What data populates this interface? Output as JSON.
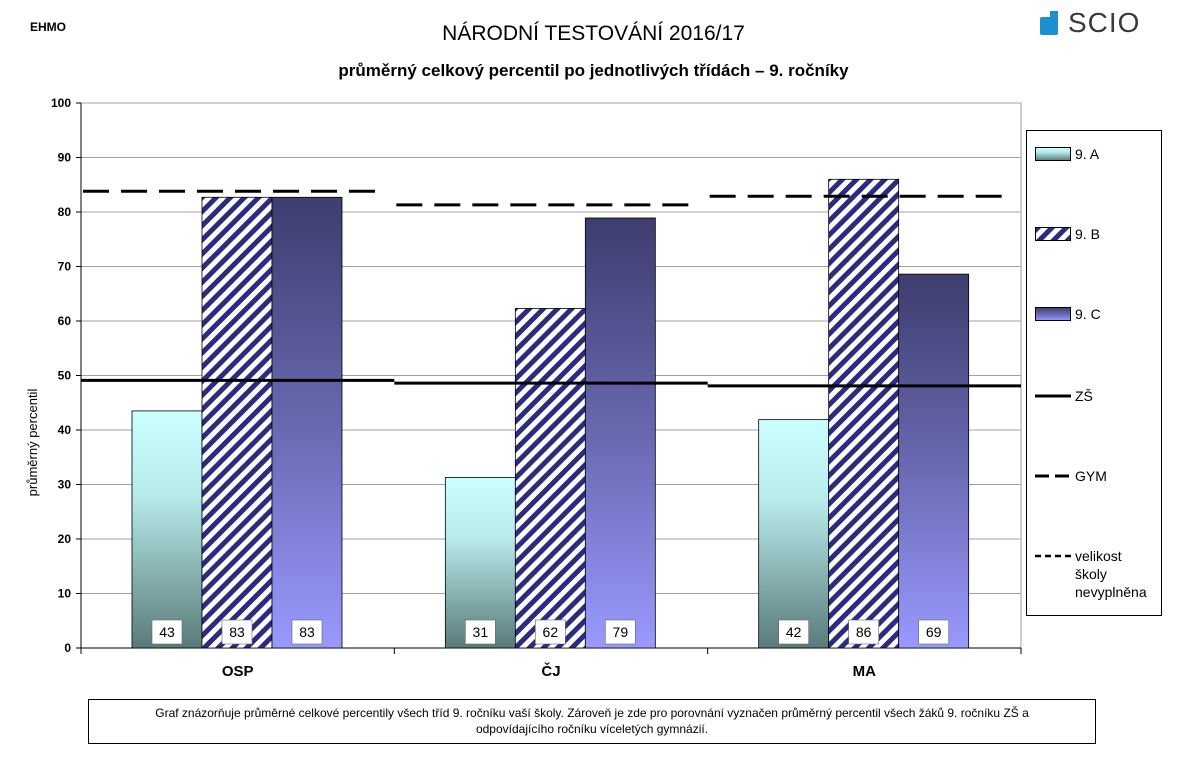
{
  "header": {
    "corner_label": "EHMO",
    "title": "NÁRODNÍ TESTOVÁNÍ 2016/17",
    "subtitle": "průměrný celkový percentil po jednotlivých třídách – 9. ročníky",
    "logo_text": "SCIO"
  },
  "caption": "Graf znázorňuje průměrné celkové percentily všech tříd 9. ročníku vaší školy. Zároveň je zde pro porovnání vyznačen průměrný percentil všech žáků 9. ročníku ZŠ a odpovídajícího ročníku víceletých gymnázií.",
  "colors": {
    "class_a_top": "#ccffff",
    "class_a_bottom": "#5a7a7a",
    "class_b_stripe": "#2b2b80",
    "class_c_top": "#3d3d6e",
    "class_c_bottom": "#9999ff",
    "grid": "#a0a0a0"
  },
  "chart_data": {
    "type": "bar",
    "title": "průměrný celkový percentil po jednotlivých třídách – 9. ročníky",
    "ylabel": "průměrný percentil",
    "xlabel": "",
    "ylim": [
      0,
      100
    ],
    "yticks": [
      "0",
      "10",
      "20",
      "30",
      "40",
      "50",
      "60",
      "70",
      "80",
      "90",
      "100"
    ],
    "grid": true,
    "legend_position": "right",
    "categories": [
      "OSP",
      "ČJ",
      "MA"
    ],
    "series": [
      {
        "name": "9. A",
        "values": [
          43.5,
          31.3,
          41.9
        ],
        "labels": [
          "43",
          "31",
          "42"
        ]
      },
      {
        "name": "9. B",
        "values": [
          82.7,
          62.3,
          86.0
        ],
        "labels": [
          "83",
          "62",
          "86"
        ]
      },
      {
        "name": "9. C",
        "values": [
          82.7,
          78.9,
          68.6
        ],
        "labels": [
          "83",
          "79",
          "69"
        ]
      }
    ],
    "reference_lines": [
      {
        "name": "ZŠ",
        "style": "solid",
        "values": [
          49.1,
          48.6,
          48.1
        ]
      },
      {
        "name": "GYM",
        "style": "long-dash",
        "values": [
          83.8,
          81.3,
          82.9
        ]
      }
    ],
    "legend": [
      "9. A",
      "9. B",
      "9. C",
      "ZŠ",
      "GYM",
      "velikost\nškoly\nnevyplněna"
    ]
  }
}
